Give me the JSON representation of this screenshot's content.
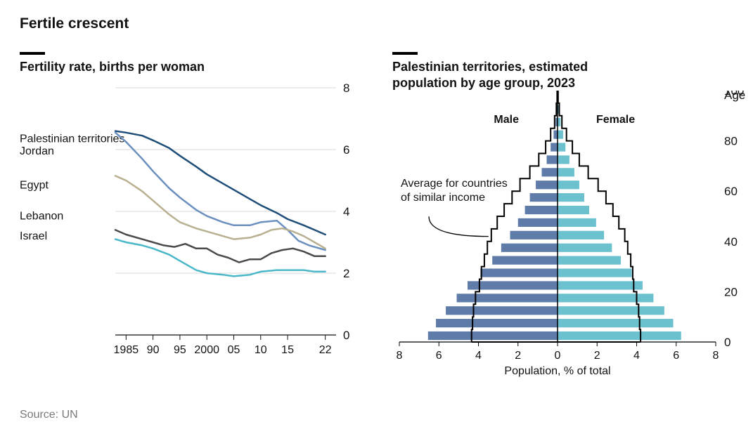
{
  "title": "Fertile crescent",
  "source": "Source: UN",
  "left_chart": {
    "type": "line",
    "title": "Fertility rate, births per woman",
    "x_start": 1983,
    "x_end": 2024,
    "ylim": [
      0,
      8
    ],
    "ytick_step": 2,
    "grid_color": "#d9d9d9",
    "baseline_color": "#121212",
    "xticks": [
      {
        "x": 1985,
        "label": "1985"
      },
      {
        "x": 1990,
        "label": "90"
      },
      {
        "x": 1995,
        "label": "95"
      },
      {
        "x": 2000,
        "label": "2000"
      },
      {
        "x": 2005,
        "label": "05"
      },
      {
        "x": 2010,
        "label": "10"
      },
      {
        "x": 2015,
        "label": "15"
      },
      {
        "x": 2022,
        "label": "22"
      }
    ],
    "line_width": 2.5,
    "label_fontsize": 16,
    "series": [
      {
        "name": "Palestinian territories",
        "label_y": 6.35,
        "color": "#1f4e79",
        "points": [
          [
            1983,
            6.6
          ],
          [
            1985,
            6.55
          ],
          [
            1988,
            6.45
          ],
          [
            1990,
            6.3
          ],
          [
            1993,
            6.05
          ],
          [
            1995,
            5.8
          ],
          [
            1998,
            5.45
          ],
          [
            2000,
            5.2
          ],
          [
            2003,
            4.9
          ],
          [
            2005,
            4.7
          ],
          [
            2008,
            4.4
          ],
          [
            2010,
            4.2
          ],
          [
            2013,
            3.95
          ],
          [
            2015,
            3.75
          ],
          [
            2018,
            3.55
          ],
          [
            2020,
            3.4
          ],
          [
            2022,
            3.25
          ]
        ]
      },
      {
        "name": "Jordan",
        "label_y": 5.95,
        "color": "#6b8fbf",
        "points": [
          [
            1983,
            6.55
          ],
          [
            1985,
            6.25
          ],
          [
            1988,
            5.7
          ],
          [
            1990,
            5.3
          ],
          [
            1993,
            4.75
          ],
          [
            1995,
            4.45
          ],
          [
            1998,
            4.05
          ],
          [
            2000,
            3.85
          ],
          [
            2003,
            3.65
          ],
          [
            2005,
            3.55
          ],
          [
            2008,
            3.55
          ],
          [
            2010,
            3.65
          ],
          [
            2013,
            3.7
          ],
          [
            2015,
            3.4
          ],
          [
            2017,
            3.05
          ],
          [
            2019,
            2.9
          ],
          [
            2022,
            2.75
          ]
        ]
      },
      {
        "name": "Egypt",
        "label_y": 4.85,
        "color": "#b8b090",
        "points": [
          [
            1983,
            5.15
          ],
          [
            1985,
            5.0
          ],
          [
            1988,
            4.65
          ],
          [
            1990,
            4.35
          ],
          [
            1993,
            3.9
          ],
          [
            1995,
            3.65
          ],
          [
            1998,
            3.45
          ],
          [
            2000,
            3.35
          ],
          [
            2003,
            3.2
          ],
          [
            2005,
            3.1
          ],
          [
            2008,
            3.15
          ],
          [
            2010,
            3.25
          ],
          [
            2012,
            3.4
          ],
          [
            2014,
            3.45
          ],
          [
            2016,
            3.35
          ],
          [
            2018,
            3.2
          ],
          [
            2020,
            3.0
          ],
          [
            2022,
            2.8
          ]
        ]
      },
      {
        "name": "Lebanon",
        "label_y": 3.85,
        "color": "#4a4a4a",
        "points": [
          [
            1983,
            3.4
          ],
          [
            1985,
            3.25
          ],
          [
            1988,
            3.1
          ],
          [
            1990,
            3.0
          ],
          [
            1992,
            2.9
          ],
          [
            1994,
            2.85
          ],
          [
            1996,
            2.95
          ],
          [
            1998,
            2.8
          ],
          [
            2000,
            2.8
          ],
          [
            2002,
            2.6
          ],
          [
            2004,
            2.5
          ],
          [
            2006,
            2.35
          ],
          [
            2008,
            2.45
          ],
          [
            2010,
            2.45
          ],
          [
            2012,
            2.65
          ],
          [
            2014,
            2.75
          ],
          [
            2016,
            2.8
          ],
          [
            2018,
            2.7
          ],
          [
            2020,
            2.55
          ],
          [
            2022,
            2.55
          ]
        ]
      },
      {
        "name": "Israel",
        "label_y": 3.2,
        "color": "#4bb8c9",
        "points": [
          [
            1983,
            3.1
          ],
          [
            1985,
            3.0
          ],
          [
            1988,
            2.9
          ],
          [
            1990,
            2.8
          ],
          [
            1993,
            2.6
          ],
          [
            1995,
            2.4
          ],
          [
            1998,
            2.1
          ],
          [
            2000,
            2.0
          ],
          [
            2003,
            1.95
          ],
          [
            2005,
            1.9
          ],
          [
            2008,
            1.95
          ],
          [
            2010,
            2.05
          ],
          [
            2013,
            2.1
          ],
          [
            2015,
            2.1
          ],
          [
            2018,
            2.1
          ],
          [
            2020,
            2.05
          ],
          [
            2022,
            2.05
          ]
        ]
      }
    ]
  },
  "right_chart": {
    "type": "population-pyramid",
    "title": "Palestinian territories, estimated\npopulation by age group, 2023",
    "x_label": "Population, % of total",
    "age_label": "Age",
    "male_label": "Male",
    "female_label": "Female",
    "male_color": "#5f7ba8",
    "female_color": "#6cc1cf",
    "outline_color": "#000000",
    "axis_color": "#000000",
    "grid_color": "#e5e5e5",
    "note": "Average for countries\nof similar income",
    "x_max": 8,
    "xticks": [
      8,
      6,
      4,
      2,
      0,
      2,
      4,
      6,
      8
    ],
    "age_max": 100,
    "age_ticks": [
      0,
      20,
      40,
      60,
      80,
      100
    ],
    "groups": [
      {
        "age_low": 0,
        "male": 6.55,
        "female": 6.25
      },
      {
        "age_low": 5,
        "male": 6.15,
        "female": 5.85
      },
      {
        "age_low": 10,
        "male": 5.65,
        "female": 5.4
      },
      {
        "age_low": 15,
        "male": 5.1,
        "female": 4.85
      },
      {
        "age_low": 20,
        "male": 4.55,
        "female": 4.3
      },
      {
        "age_low": 25,
        "male": 3.9,
        "female": 3.75
      },
      {
        "age_low": 30,
        "male": 3.3,
        "female": 3.2
      },
      {
        "age_low": 35,
        "male": 2.85,
        "female": 2.75
      },
      {
        "age_low": 40,
        "male": 2.4,
        "female": 2.35
      },
      {
        "age_low": 45,
        "male": 2.0,
        "female": 1.95
      },
      {
        "age_low": 50,
        "male": 1.65,
        "female": 1.6
      },
      {
        "age_low": 55,
        "male": 1.4,
        "female": 1.35
      },
      {
        "age_low": 60,
        "male": 1.1,
        "female": 1.1
      },
      {
        "age_low": 65,
        "male": 0.8,
        "female": 0.85
      },
      {
        "age_low": 70,
        "male": 0.55,
        "female": 0.6
      },
      {
        "age_low": 75,
        "male": 0.35,
        "female": 0.4
      },
      {
        "age_low": 80,
        "male": 0.2,
        "female": 0.28
      },
      {
        "age_low": 85,
        "male": 0.1,
        "female": 0.15
      },
      {
        "age_low": 90,
        "male": 0.04,
        "female": 0.07
      },
      {
        "age_low": 95,
        "male": 0.02,
        "female": 0.03
      }
    ],
    "comparison_male": [
      4.35,
      4.3,
      4.25,
      4.15,
      3.95,
      3.85,
      3.7,
      3.55,
      3.35,
      3.05,
      2.7,
      2.3,
      1.9,
      1.4,
      0.95,
      0.6,
      0.35,
      0.15,
      0.06,
      0.02
    ],
    "comparison_female": [
      4.2,
      4.15,
      4.1,
      4.0,
      3.85,
      3.8,
      3.7,
      3.55,
      3.4,
      3.1,
      2.8,
      2.45,
      2.05,
      1.55,
      1.1,
      0.75,
      0.45,
      0.22,
      0.09,
      0.03
    ]
  }
}
